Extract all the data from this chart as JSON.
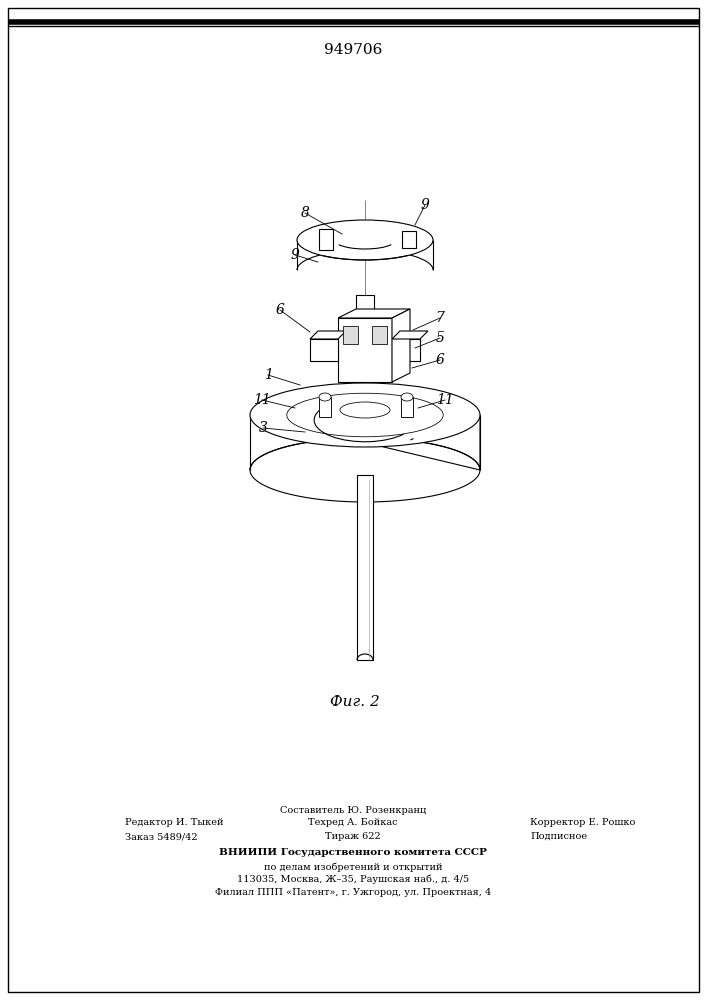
{
  "patent_number": "949706",
  "fig_label": "Фиг. 2",
  "bg_color": "#ffffff",
  "footer": {
    "line_sestavitel": "Составитель Ю. Розенкранц",
    "line_editor": "Редактор И. Тыкей",
    "line_tekhred": "Техред А. Бойкас",
    "line_korrektor": "Корректор Е. Рошко",
    "line_zakaz": "Заказ 5489/42",
    "line_tirazh": "Тираж 622",
    "line_podpisnoe": "Подписное",
    "line_vniip1": "ВНИИПИ Государственного комитета СССР",
    "line_vniip2": "по делам изобретений и открытий",
    "line_vniip3": "113035, Москва, Ж–35, Раушская наб., д. 4/5",
    "line_filial": "Филиал ППП «Патент», г. Ужгород, ул. Проектная, 4"
  }
}
